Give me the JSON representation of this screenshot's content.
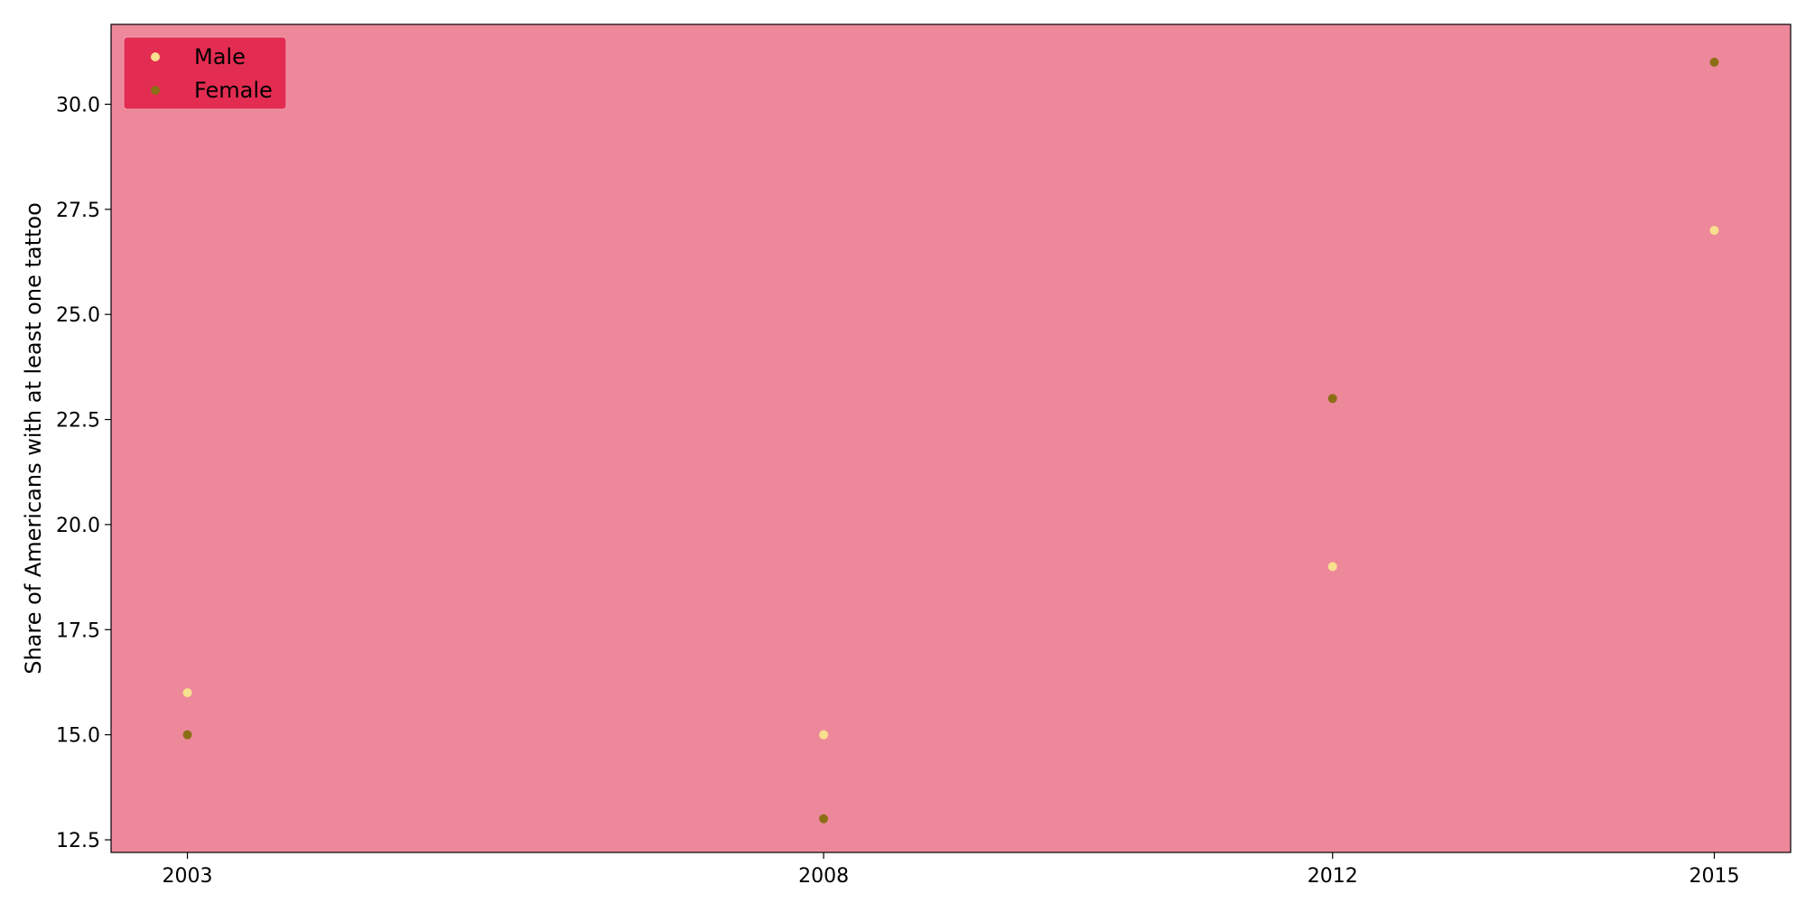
{
  "chart_data": {
    "type": "scatter",
    "title": "",
    "xlabel": "",
    "ylabel": "Share of Americans with at least one tattoo",
    "x": [
      2003,
      2008,
      2012,
      2015
    ],
    "x_tick_labels": [
      "2003",
      "2008",
      "2012",
      "2015"
    ],
    "xlim": [
      2002.4,
      2015.6
    ],
    "ylim": [
      12.2,
      31.9
    ],
    "y_ticks": [
      12.5,
      15.0,
      17.5,
      20.0,
      22.5,
      25.0,
      27.5,
      30.0
    ],
    "y_tick_labels": [
      "12.5",
      "15.0",
      "17.5",
      "20.0",
      "22.5",
      "25.0",
      "27.5",
      "30.0"
    ],
    "grid": false,
    "legend_position": "top-left",
    "series": [
      {
        "name": "Male",
        "color": "#f7e08e",
        "values": [
          16,
          15,
          19,
          27
        ]
      },
      {
        "name": "Female",
        "color": "#8b6f15",
        "values": [
          15,
          13,
          23,
          31
        ]
      }
    ],
    "colors": {
      "plot_background": "#ed889b",
      "legend_background": "#e32c52",
      "axis": "#000000"
    }
  }
}
